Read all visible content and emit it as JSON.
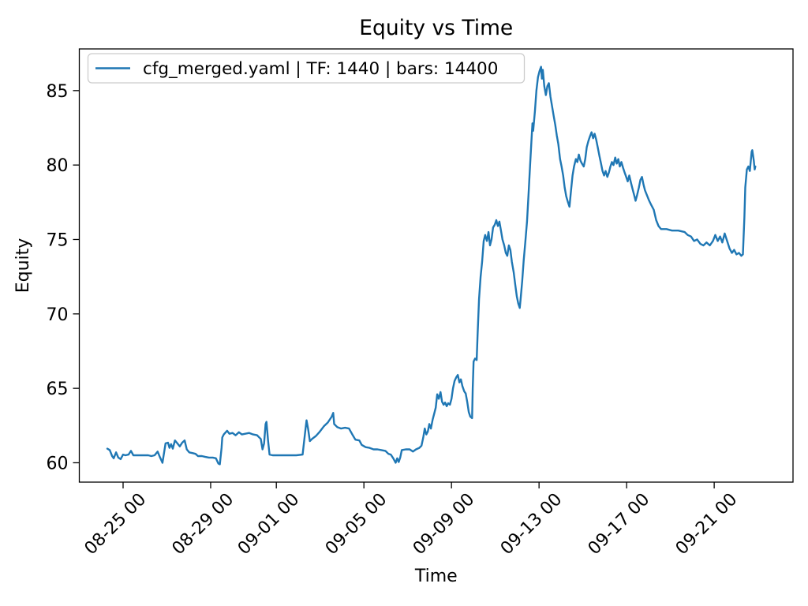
{
  "figure": {
    "background": "#ffffff",
    "text_color": "#000000",
    "spine_color": "#000000"
  },
  "chart_data": {
    "type": "line",
    "title": "Equity vs Time",
    "xlabel": "Time",
    "ylabel": "Equity",
    "grid": false,
    "legend": {
      "position": "upper left"
    },
    "x_unit": "days (0 = 08-24 00:00); tick labels are MM-DD HH",
    "x_ticks": [
      {
        "day": 1,
        "label": "08-25 00"
      },
      {
        "day": 5,
        "label": "08-29 00"
      },
      {
        "day": 8,
        "label": "09-01 00"
      },
      {
        "day": 12,
        "label": "09-05 00"
      },
      {
        "day": 16,
        "label": "09-09 00"
      },
      {
        "day": 20,
        "label": "09-13 00"
      },
      {
        "day": 24,
        "label": "09-17 00"
      },
      {
        "day": 28,
        "label": "09-21 00"
      }
    ],
    "y_ticks": [
      60,
      65,
      70,
      75,
      80,
      85
    ],
    "xlim": [
      -1.0,
      31.6
    ],
    "ylim": [
      58.7,
      87.8
    ],
    "series": [
      {
        "name": "cfg_merged.yaml | TF: 1440 | bars: 14400",
        "color": "#1f77b4",
        "line_width": 2.4,
        "x": [
          0.28,
          0.39,
          0.5,
          0.57,
          0.68,
          0.78,
          0.89,
          1.0,
          1.11,
          1.25,
          1.36,
          1.47,
          1.61,
          1.79,
          1.97,
          2.15,
          2.29,
          2.44,
          2.58,
          2.69,
          2.8,
          2.94,
          3.05,
          3.12,
          3.19,
          3.27,
          3.37,
          3.48,
          3.59,
          3.7,
          3.81,
          3.91,
          4.02,
          4.17,
          4.31,
          4.42,
          4.6,
          4.74,
          4.92,
          5.1,
          5.24,
          5.35,
          5.42,
          5.5,
          5.53,
          5.6,
          5.75,
          5.86,
          6.0,
          6.14,
          6.29,
          6.43,
          6.58,
          6.76,
          6.94,
          7.12,
          7.29,
          7.37,
          7.44,
          7.51,
          7.55,
          7.62,
          7.69,
          7.83,
          8.19,
          8.55,
          8.91,
          9.2,
          9.31,
          9.38,
          9.45,
          9.53,
          9.63,
          9.81,
          9.99,
          10.17,
          10.35,
          10.53,
          10.6,
          10.64,
          10.78,
          10.96,
          11.14,
          11.32,
          11.47,
          11.61,
          11.79,
          11.9,
          12.08,
          12.26,
          12.44,
          12.62,
          12.8,
          12.98,
          13.12,
          13.23,
          13.34,
          13.45,
          13.52,
          13.59,
          13.66,
          13.73,
          13.91,
          14.09,
          14.24,
          14.38,
          14.53,
          14.63,
          14.71,
          14.78,
          14.85,
          14.92,
          14.99,
          15.06,
          15.14,
          15.21,
          15.28,
          15.35,
          15.42,
          15.5,
          15.57,
          15.64,
          15.71,
          15.78,
          15.85,
          15.93,
          16.0,
          16.07,
          16.14,
          16.22,
          16.29,
          16.36,
          16.43,
          16.5,
          16.58,
          16.65,
          16.72,
          16.79,
          16.86,
          16.94,
          16.97,
          17.01,
          17.08,
          17.15,
          17.19,
          17.26,
          17.33,
          17.4,
          17.47,
          17.54,
          17.62,
          17.69,
          17.76,
          17.83,
          17.9,
          17.98,
          18.05,
          18.12,
          18.19,
          18.26,
          18.33,
          18.41,
          18.48,
          18.55,
          18.62,
          18.69,
          18.76,
          18.84,
          18.91,
          18.98,
          19.05,
          19.12,
          19.16,
          19.23,
          19.3,
          19.37,
          19.45,
          19.52,
          19.59,
          19.66,
          19.7,
          19.73,
          19.81,
          19.88,
          19.95,
          20.02,
          20.09,
          20.13,
          20.17,
          20.24,
          20.31,
          20.38,
          20.45,
          20.52,
          20.6,
          20.67,
          20.74,
          20.81,
          20.88,
          20.96,
          21.03,
          21.1,
          21.17,
          21.24,
          21.32,
          21.39,
          21.46,
          21.53,
          21.6,
          21.68,
          21.75,
          21.82,
          21.89,
          21.96,
          22.04,
          22.11,
          22.18,
          22.25,
          22.32,
          22.4,
          22.47,
          22.54,
          22.61,
          22.68,
          22.76,
          22.83,
          22.9,
          22.97,
          23.04,
          23.12,
          23.19,
          23.26,
          23.33,
          23.4,
          23.48,
          23.55,
          23.62,
          23.69,
          23.76,
          23.84,
          23.91,
          23.98,
          24.05,
          24.12,
          24.2,
          24.27,
          24.34,
          24.41,
          24.48,
          24.56,
          24.63,
          24.7,
          24.77,
          24.84,
          24.92,
          25.03,
          25.13,
          25.24,
          25.35,
          25.46,
          25.57,
          25.82,
          26.07,
          26.36,
          26.65,
          26.79,
          26.94,
          27.08,
          27.22,
          27.37,
          27.51,
          27.65,
          27.8,
          27.94,
          28.05,
          28.16,
          28.27,
          28.37,
          28.48,
          28.59,
          28.7,
          28.81,
          28.91,
          29.02,
          29.13,
          29.24,
          29.31,
          29.38,
          29.42,
          29.49,
          29.56,
          29.63,
          29.71,
          29.74,
          29.81,
          29.85,
          29.88
        ],
        "y": [
          60.95,
          60.85,
          60.45,
          60.3,
          60.7,
          60.35,
          60.25,
          60.55,
          60.5,
          60.55,
          60.8,
          60.5,
          60.5,
          60.5,
          60.5,
          60.5,
          60.45,
          60.5,
          60.75,
          60.35,
          60.0,
          61.3,
          61.35,
          61.0,
          61.25,
          60.95,
          61.5,
          61.3,
          61.1,
          61.35,
          61.5,
          60.9,
          60.7,
          60.65,
          60.6,
          60.45,
          60.45,
          60.4,
          60.35,
          60.35,
          60.3,
          59.95,
          59.9,
          61.0,
          61.7,
          61.9,
          62.15,
          61.95,
          62.0,
          61.85,
          62.05,
          61.9,
          61.95,
          62.0,
          61.9,
          61.85,
          61.6,
          60.9,
          61.3,
          62.6,
          62.75,
          61.5,
          60.55,
          60.5,
          60.5,
          60.5,
          60.5,
          60.55,
          62.0,
          62.85,
          62.3,
          61.45,
          61.6,
          61.8,
          62.1,
          62.45,
          62.7,
          63.1,
          63.35,
          62.6,
          62.4,
          62.3,
          62.35,
          62.3,
          61.9,
          61.55,
          61.5,
          61.2,
          61.05,
          61.0,
          60.9,
          60.9,
          60.85,
          60.8,
          60.6,
          60.55,
          60.3,
          60.0,
          60.3,
          60.05,
          60.35,
          60.85,
          60.9,
          60.9,
          60.75,
          60.9,
          61.0,
          61.15,
          61.7,
          62.3,
          61.9,
          62.1,
          62.6,
          62.3,
          62.9,
          63.3,
          63.7,
          64.6,
          64.3,
          64.75,
          64.1,
          63.9,
          64.05,
          63.8,
          64.0,
          63.9,
          64.3,
          65.0,
          65.5,
          65.75,
          65.9,
          65.4,
          65.6,
          65.15,
          64.8,
          64.65,
          64.1,
          63.4,
          63.1,
          63.0,
          65.0,
          66.8,
          67.0,
          66.9,
          68.5,
          71.0,
          72.5,
          73.5,
          74.9,
          75.3,
          74.9,
          75.5,
          74.6,
          75.0,
          75.8,
          76.0,
          76.3,
          75.9,
          76.2,
          75.6,
          75.0,
          74.6,
          74.1,
          73.9,
          74.6,
          74.3,
          73.5,
          72.8,
          72.0,
          71.2,
          70.7,
          70.4,
          71.0,
          72.2,
          73.6,
          74.8,
          76.2,
          78.0,
          80.0,
          81.8,
          82.8,
          82.3,
          83.6,
          85.0,
          85.9,
          86.3,
          86.6,
          85.8,
          86.4,
          85.3,
          84.7,
          85.3,
          85.5,
          84.6,
          83.9,
          83.3,
          82.7,
          82.0,
          81.4,
          80.4,
          79.9,
          79.3,
          78.5,
          77.9,
          77.5,
          77.2,
          78.3,
          79.3,
          79.9,
          80.4,
          80.2,
          80.7,
          80.3,
          80.1,
          79.9,
          80.4,
          81.2,
          81.6,
          81.9,
          82.2,
          81.8,
          82.1,
          81.7,
          81.2,
          80.6,
          80.1,
          79.6,
          79.3,
          79.6,
          79.2,
          79.5,
          79.9,
          80.2,
          80.0,
          80.5,
          80.1,
          80.4,
          79.9,
          80.2,
          79.8,
          79.5,
          79.2,
          78.9,
          79.3,
          78.8,
          78.4,
          78.0,
          77.6,
          78.0,
          78.5,
          79.0,
          79.2,
          78.7,
          78.3,
          78.0,
          77.6,
          77.3,
          77.0,
          76.3,
          75.9,
          75.7,
          75.7,
          75.6,
          75.6,
          75.5,
          75.3,
          75.2,
          74.9,
          75.0,
          74.7,
          74.6,
          74.8,
          74.6,
          74.9,
          75.3,
          74.9,
          75.2,
          74.8,
          75.4,
          74.9,
          74.4,
          74.1,
          74.3,
          74.0,
          74.1,
          73.9,
          74.0,
          76.5,
          78.5,
          79.7,
          79.9,
          79.6,
          80.9,
          81.0,
          80.3,
          79.7,
          79.9
        ]
      }
    ]
  }
}
